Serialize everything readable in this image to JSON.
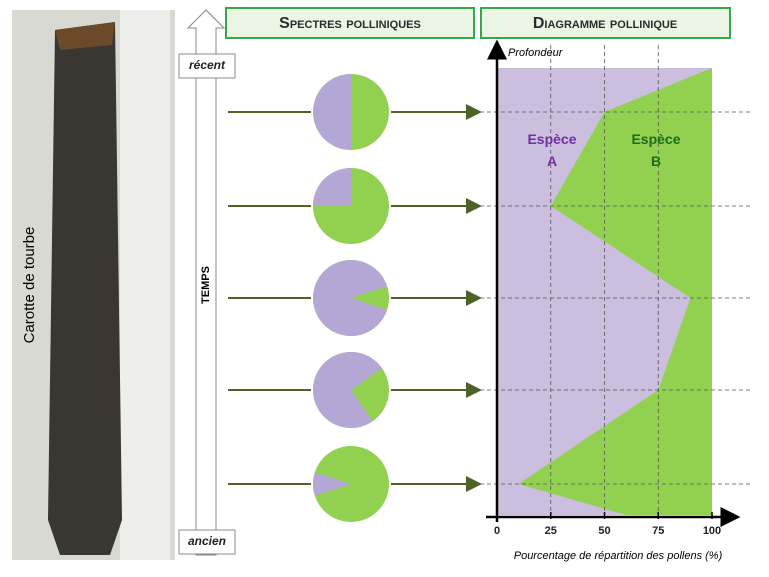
{
  "photo": {
    "label": "Carotte de tourbe"
  },
  "timeline": {
    "top": "récent",
    "bottom": "ancien",
    "label": "TEMPS"
  },
  "headers": {
    "left": "Spectres polliniques",
    "right": "Diagramme pollinique"
  },
  "pies": [
    {
      "espece_a": 50
    },
    {
      "espece_a": 25
    },
    {
      "espece_a": 90
    },
    {
      "espece_a": 75
    },
    {
      "espece_a": 10
    }
  ],
  "diagram": {
    "y_label": "Profondeur",
    "x_label": "Pourcentage de répartition des pollens (%)",
    "xlim": [
      0,
      100
    ],
    "xticks": [
      0,
      25,
      50,
      75,
      100
    ],
    "espece_a": [
      100,
      50,
      25,
      90,
      75,
      10,
      60
    ],
    "label_a": "Espèce A",
    "label_b": "Espèce B",
    "color_a": "#cbbedf",
    "color_b": "#92d050"
  }
}
